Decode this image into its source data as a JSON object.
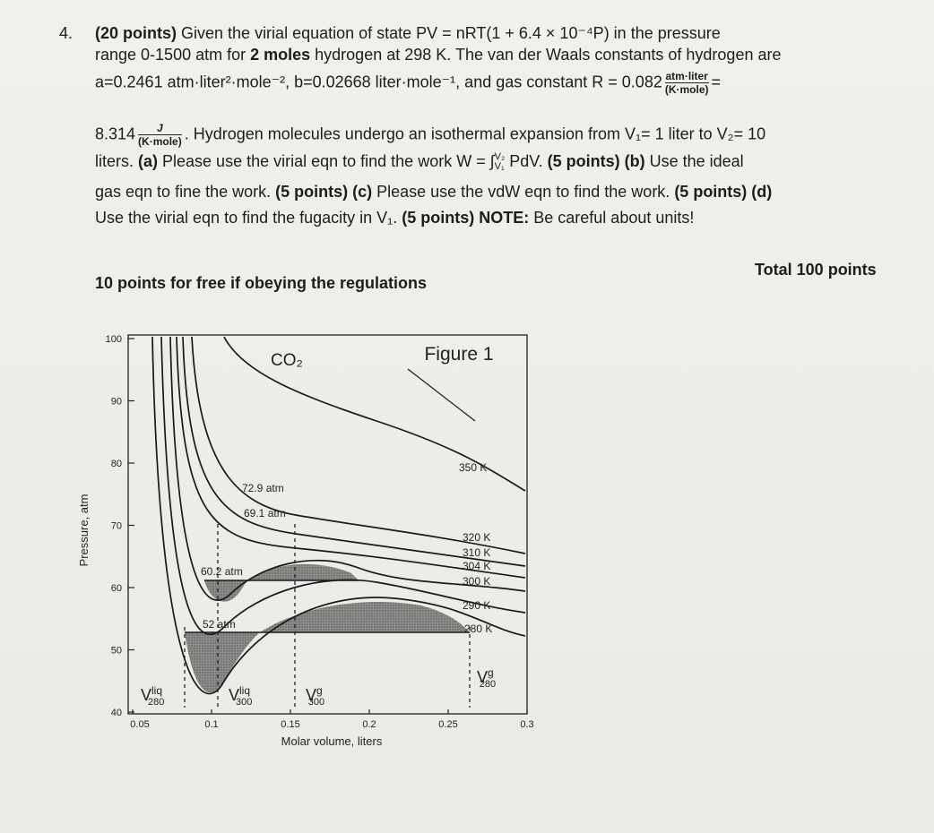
{
  "question": {
    "number": "4.",
    "line1": [
      "(20 points)",
      " Given the virial equation of state PV = nRT(1 + 6.4 × 10⁻⁴P) in the pressure"
    ],
    "line2": [
      "range 0-1500 atm for ",
      "2 moles",
      " hydrogen at 298 K. The van der Waals constants of hydrogen are"
    ],
    "line3": [
      "a=0.2461 atm·liter²·mole⁻², b=0.02668 liter·mole⁻¹, and gas constant R = 0.082",
      "atm·liter",
      "(K·mole)",
      "="
    ],
    "line4": [
      "8.314",
      "J",
      "(K·mole)",
      ". Hydrogen molecules undergo an isothermal expansion from V₁= 1 liter to V₂= 10"
    ],
    "line5": [
      "liters. ",
      "(a)",
      " Please use the virial eqn  to find the work W = ∫",
      "V₂",
      "V₁",
      " PdV. ",
      "(5 points) (b)",
      " Use the ideal"
    ],
    "line6": [
      "gas eqn to fine the work. ",
      "(5 points) (c)",
      " Please use the vdW eqn to find the work. ",
      "(5 points) (d)"
    ],
    "line7": [
      "Use the virial eqn to find the fugacity in V₁. ",
      "(5 points) NOTE:",
      " Be careful about units!"
    ],
    "bonus": "10 points for free if obeying the regulations",
    "total": "Total 100 points"
  },
  "figure": {
    "title": "CO₂",
    "label": "Figure 1",
    "xlabel": "Molar volume, liters",
    "ylabel": "Pressure, atm",
    "xlim": [
      0.05,
      0.3
    ],
    "ylim": [
      40,
      100
    ],
    "xticks": [
      0.05,
      0.1,
      0.15,
      0.2,
      0.25,
      0.3
    ],
    "yticks": [
      40,
      50,
      60,
      70,
      80,
      90,
      100
    ],
    "isotherms": [
      "350 K",
      "320 K",
      "310 K",
      "304 K",
      "300 K",
      "290 K",
      "280 K"
    ],
    "pressures": [
      "72.9 atm",
      "69.1 atm",
      "60.2 atm",
      "52 atm"
    ],
    "volumes": [
      {
        "symbol": "V",
        "sup": "liq",
        "sub": "280"
      },
      {
        "symbol": "V",
        "sup": "liq",
        "sub": "300"
      },
      {
        "symbol": "V",
        "sup": "g",
        "sub": "300"
      },
      {
        "symbol": "V",
        "sup": "g",
        "sub": "280"
      }
    ]
  }
}
